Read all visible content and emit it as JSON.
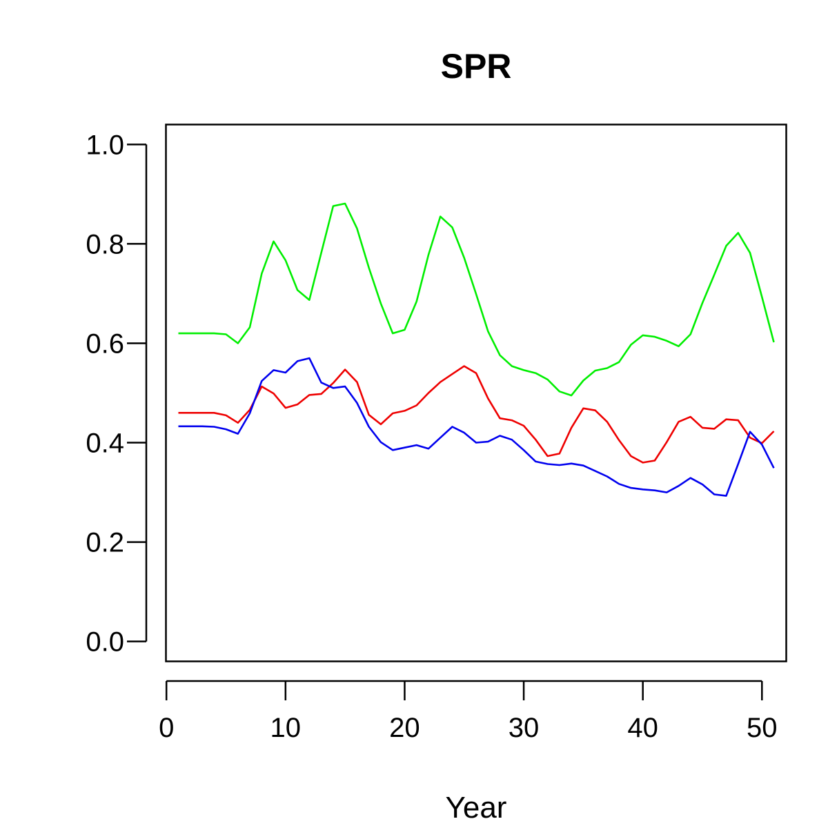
{
  "chart_data": {
    "type": "line",
    "title": "SPR",
    "xlabel": "Year",
    "ylabel": "",
    "xlim": [
      -0.04,
      52.04
    ],
    "ylim": [
      -0.04,
      1.04
    ],
    "xticks": [
      0,
      10,
      20,
      30,
      40,
      50
    ],
    "yticks": [
      0.0,
      0.2,
      0.4,
      0.6,
      0.8,
      1.0
    ],
    "xtick_labels": [
      "0",
      "10",
      "20",
      "30",
      "40",
      "50"
    ],
    "ytick_labels": [
      "0.0",
      "0.2",
      "0.4",
      "0.6",
      "0.8",
      "1.0"
    ],
    "grid": false,
    "legend": "none",
    "x": [
      1,
      2,
      3,
      4,
      5,
      6,
      7,
      8,
      9,
      10,
      11,
      12,
      13,
      14,
      15,
      16,
      17,
      18,
      19,
      20,
      21,
      22,
      23,
      24,
      25,
      26,
      27,
      28,
      29,
      30,
      31,
      32,
      33,
      34,
      35,
      36,
      37,
      38,
      39,
      40,
      41,
      42,
      43,
      44,
      45,
      46,
      47,
      48,
      49,
      50,
      51
    ],
    "series": [
      {
        "color": "#00ee00",
        "values": [
          0.62,
          0.62,
          0.62,
          0.62,
          0.618,
          0.6,
          0.632,
          0.74,
          0.805,
          0.767,
          0.707,
          0.687,
          0.782,
          0.876,
          0.881,
          0.831,
          0.752,
          0.68,
          0.62,
          0.627,
          0.684,
          0.778,
          0.855,
          0.833,
          0.772,
          0.699,
          0.624,
          0.576,
          0.554,
          0.546,
          0.54,
          0.527,
          0.503,
          0.495,
          0.525,
          0.545,
          0.55,
          0.562,
          0.597,
          0.616,
          0.613,
          0.605,
          0.594,
          0.618,
          0.681,
          0.738,
          0.796,
          0.822,
          0.782,
          0.693,
          0.602
        ]
      },
      {
        "color": "#ee0000",
        "values": [
          0.46,
          0.46,
          0.46,
          0.46,
          0.455,
          0.44,
          0.466,
          0.513,
          0.499,
          0.47,
          0.477,
          0.496,
          0.498,
          0.52,
          0.547,
          0.522,
          0.456,
          0.437,
          0.459,
          0.464,
          0.475,
          0.5,
          0.522,
          0.538,
          0.554,
          0.54,
          0.489,
          0.449,
          0.445,
          0.434,
          0.406,
          0.373,
          0.378,
          0.43,
          0.469,
          0.465,
          0.442,
          0.405,
          0.373,
          0.36,
          0.364,
          0.401,
          0.442,
          0.452,
          0.43,
          0.428,
          0.447,
          0.445,
          0.41,
          0.399,
          0.423
        ]
      },
      {
        "color": "#0000ee",
        "values": [
          0.433,
          0.433,
          0.433,
          0.432,
          0.427,
          0.418,
          0.459,
          0.524,
          0.546,
          0.541,
          0.564,
          0.57,
          0.521,
          0.51,
          0.513,
          0.48,
          0.432,
          0.401,
          0.385,
          0.39,
          0.395,
          0.388,
          0.41,
          0.432,
          0.42,
          0.4,
          0.402,
          0.414,
          0.406,
          0.385,
          0.362,
          0.357,
          0.355,
          0.358,
          0.354,
          0.343,
          0.332,
          0.317,
          0.309,
          0.306,
          0.304,
          0.3,
          0.313,
          0.329,
          0.316,
          0.296,
          0.293,
          0.357,
          0.422,
          0.396,
          0.349
        ]
      }
    ]
  }
}
